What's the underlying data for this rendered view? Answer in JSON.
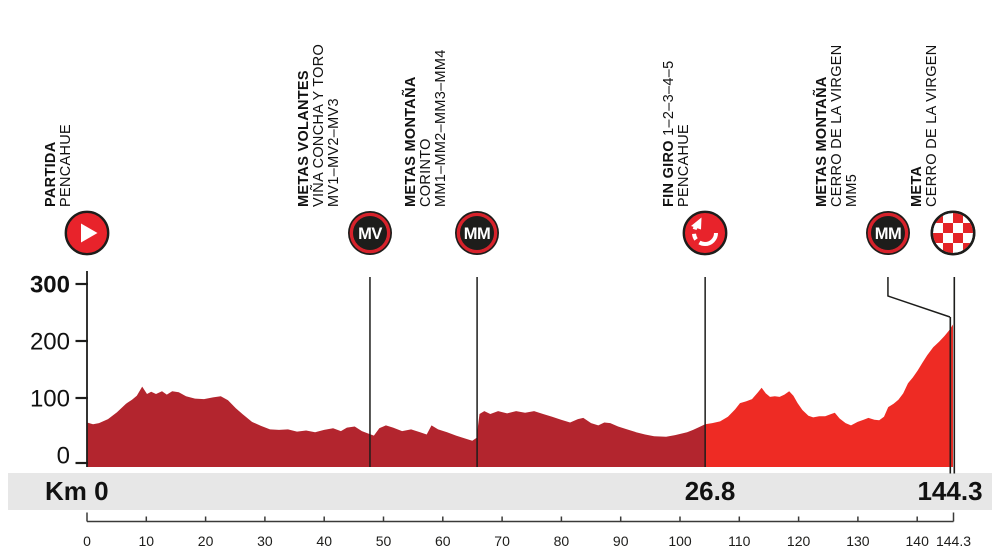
{
  "colors": {
    "profile_dark": "#b3252e",
    "profile_bright": "#ee2b24",
    "icon_red": "#e8232b",
    "ring_red": "#d7222b",
    "checker_red": "#e32427",
    "band_gray": "#e7e7e7",
    "ink": "#1d1d1b"
  },
  "band": {
    "start": "Km 0",
    "mid": "26.8",
    "end": "144.3"
  },
  "chart_data": {
    "type": "area",
    "title": "",
    "xlabel": "",
    "ylabel": "",
    "xlim": [
      0,
      144.3
    ],
    "ylim": [
      0,
      300
    ],
    "total_km": 144.3,
    "split_km": 103,
    "x_tick_km": [
      0,
      10,
      20,
      30,
      40,
      50,
      60,
      70,
      80,
      90,
      100,
      110,
      120,
      130,
      140
    ],
    "x_tick_labels": [
      "0",
      "10",
      "20",
      "30",
      "40",
      "50",
      "60",
      "70",
      "80",
      "90",
      "100",
      "110",
      "120",
      "130",
      "140"
    ],
    "x_end_tick": {
      "km": 144.3,
      "label": "144.3"
    },
    "y_ticks": [
      {
        "m": 300,
        "label": "300",
        "bold": true
      },
      {
        "m": 200,
        "label": "200",
        "bold": false
      },
      {
        "m": 100,
        "label": "100",
        "bold": false
      },
      {
        "m": 0,
        "label": "0",
        "bold": false
      }
    ],
    "profile": [
      [
        0,
        57
      ],
      [
        1,
        54
      ],
      [
        2,
        56
      ],
      [
        3.5,
        63
      ],
      [
        5,
        75
      ],
      [
        6.5,
        90
      ],
      [
        7.5,
        97
      ],
      [
        8.3,
        104
      ],
      [
        9.2,
        120
      ],
      [
        10,
        107
      ],
      [
        10.7,
        111
      ],
      [
        11.5,
        107
      ],
      [
        12.5,
        112
      ],
      [
        13.3,
        106
      ],
      [
        14.2,
        112
      ],
      [
        15.3,
        110
      ],
      [
        16.5,
        103
      ],
      [
        18,
        99
      ],
      [
        19.5,
        98
      ],
      [
        21,
        101
      ],
      [
        22.3,
        103
      ],
      [
        23.5,
        96
      ],
      [
        24.8,
        82
      ],
      [
        26,
        71
      ],
      [
        27.5,
        58
      ],
      [
        29,
        51
      ],
      [
        30.5,
        45
      ],
      [
        32,
        44
      ],
      [
        33.5,
        45
      ],
      [
        35,
        41
      ],
      [
        36.5,
        43
      ],
      [
        38,
        40
      ],
      [
        39.5,
        44
      ],
      [
        41,
        47
      ],
      [
        42.3,
        42
      ],
      [
        43.3,
        48
      ],
      [
        44.6,
        50
      ],
      [
        45.8,
        42
      ],
      [
        47,
        37
      ],
      [
        47.8,
        34
      ],
      [
        48.7,
        47
      ],
      [
        49.8,
        52
      ],
      [
        51,
        48
      ],
      [
        52.5,
        42
      ],
      [
        54,
        45
      ],
      [
        55.5,
        40
      ],
      [
        56.6,
        36
      ],
      [
        57.4,
        52
      ],
      [
        58.5,
        45
      ],
      [
        60,
        40
      ],
      [
        61.5,
        34
      ],
      [
        63,
        29
      ],
      [
        64.2,
        25
      ],
      [
        64.9,
        30
      ],
      [
        65.4,
        72
      ],
      [
        66.2,
        77
      ],
      [
        67.2,
        72
      ],
      [
        68.5,
        77
      ],
      [
        70,
        73
      ],
      [
        71.5,
        77
      ],
      [
        73,
        74
      ],
      [
        74.5,
        77
      ],
      [
        76,
        72
      ],
      [
        77.5,
        67
      ],
      [
        79,
        62
      ],
      [
        80.5,
        57
      ],
      [
        81.8,
        63
      ],
      [
        82.7,
        65
      ],
      [
        84,
        56
      ],
      [
        85.2,
        52
      ],
      [
        86.2,
        57
      ],
      [
        87.2,
        56
      ],
      [
        88.5,
        50
      ],
      [
        90,
        45
      ],
      [
        91.5,
        40
      ],
      [
        93,
        36
      ],
      [
        94.5,
        33
      ],
      [
        96.5,
        32
      ],
      [
        98,
        35
      ],
      [
        100,
        40
      ],
      [
        101,
        44
      ],
      [
        102,
        49
      ],
      [
        103,
        54
      ],
      [
        104.2,
        56
      ],
      [
        105.5,
        59
      ],
      [
        106.8,
        67
      ],
      [
        108,
        80
      ],
      [
        108.8,
        91
      ],
      [
        109.8,
        94
      ],
      [
        110.8,
        98
      ],
      [
        111.8,
        110
      ],
      [
        112.4,
        118
      ],
      [
        113.1,
        108
      ],
      [
        113.8,
        102
      ],
      [
        114.6,
        103
      ],
      [
        115.4,
        102
      ],
      [
        116.2,
        106
      ],
      [
        117,
        112
      ],
      [
        117.7,
        104
      ],
      [
        118.4,
        91
      ],
      [
        119.2,
        79
      ],
      [
        120.2,
        69
      ],
      [
        121,
        66
      ],
      [
        122,
        68
      ],
      [
        123,
        68
      ],
      [
        124,
        72
      ],
      [
        124.6,
        74
      ],
      [
        125.4,
        64
      ],
      [
        126.4,
        56
      ],
      [
        127.3,
        52
      ],
      [
        128.4,
        58
      ],
      [
        129.4,
        62
      ],
      [
        130.2,
        65
      ],
      [
        131.2,
        62
      ],
      [
        132,
        61
      ],
      [
        132.8,
        67
      ],
      [
        133.5,
        84
      ],
      [
        134.4,
        90
      ],
      [
        135.2,
        97
      ],
      [
        136,
        108
      ],
      [
        136.8,
        126
      ],
      [
        137.6,
        136
      ],
      [
        138.4,
        148
      ],
      [
        139.2,
        162
      ],
      [
        140,
        175
      ],
      [
        141,
        189
      ],
      [
        142,
        199
      ],
      [
        142.9,
        209
      ],
      [
        143.6,
        218
      ],
      [
        144.3,
        229
      ]
    ]
  },
  "markers": [
    {
      "id": "partida",
      "km": 0,
      "icon": "play",
      "icon_text": "",
      "bold": "PARTIDA",
      "bold_suffix": "",
      "lines": [
        "PENCAHUE"
      ],
      "line": "none"
    },
    {
      "id": "metas-volantes",
      "km": 47.15,
      "icon": "badge",
      "icon_text": "MV",
      "bold": "METAS VOLANTES",
      "bold_suffix": "",
      "lines": [
        "VIÑA CONCHA Y TORO",
        "MV1–MV2–MV3"
      ],
      "line": "full"
    },
    {
      "id": "metas-montana-corinto",
      "km": 65,
      "icon": "badge",
      "icon_text": "MM",
      "bold": "METAS MONTAÑA",
      "bold_suffix": "",
      "lines": [
        "CORINTO",
        "MM1–MM2–MM3–MM4"
      ],
      "line": "full"
    },
    {
      "id": "fin-giro",
      "km": 103,
      "icon": "loop",
      "icon_text": "",
      "bold": "FIN GIRO",
      "bold_suffix": " 1–2–3–4–5",
      "lines": [
        "PENCAHUE"
      ],
      "line": "full"
    },
    {
      "id": "metas-montana-virgen",
      "km": 133.46,
      "icon": "badge",
      "icon_text": "MM",
      "bold": "METAS MONTAÑA",
      "bold_suffix": "",
      "lines": [
        "CERRO DE LA VIRGEN",
        "MM5"
      ],
      "line": "leader"
    },
    {
      "id": "meta",
      "km": 144.3,
      "icon": "checker",
      "icon_text": "",
      "bold": "META",
      "bold_suffix": "",
      "lines": [
        "CERRO DE LA VIRGEN"
      ],
      "line": "finish"
    }
  ]
}
